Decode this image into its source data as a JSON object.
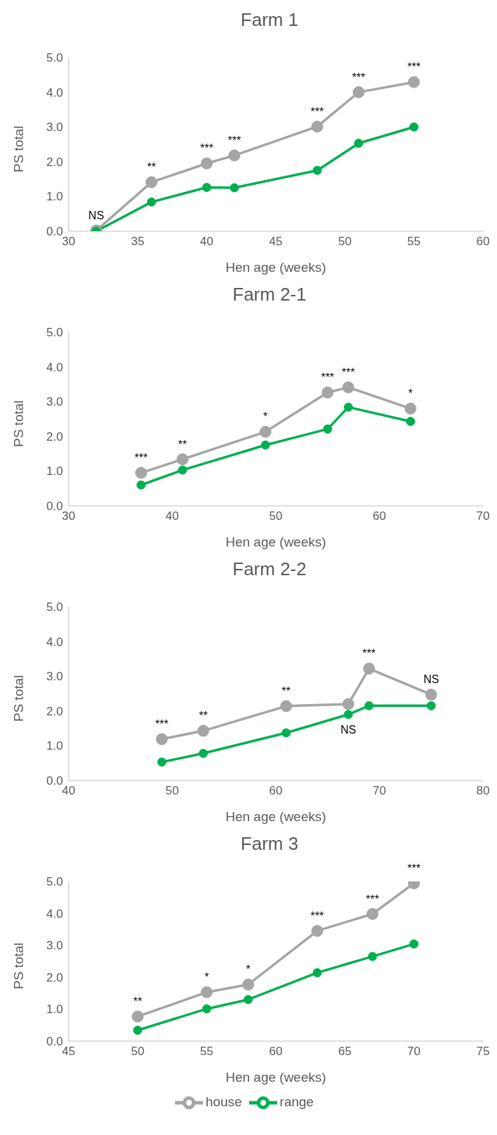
{
  "chart_data": [
    {
      "type": "line",
      "title": "Farm 1",
      "xlabel": "Hen age (weeks)",
      "ylabel": "PS total",
      "marker": "circle",
      "grid": false,
      "x": [
        32,
        36,
        40,
        42,
        48,
        51,
        55
      ],
      "series": [
        {
          "color": "#a5a5a5",
          "values": [
            0.02,
            1.41,
            1.95,
            2.18,
            3.01,
            4.0,
            4.29
          ]
        },
        {
          "color": "#00b050",
          "values": [
            0,
            0.84,
            1.26,
            1.25,
            1.75,
            2.53,
            3.0
          ]
        }
      ],
      "xlim": [
        30,
        60
      ],
      "xticks": [
        30,
        35,
        40,
        45,
        50,
        55,
        60
      ],
      "ylim": [
        0,
        5
      ],
      "yticks": [
        {
          "value": 0,
          "label": "0.0"
        },
        {
          "value": 1,
          "label": "1.0"
        },
        {
          "value": 2,
          "label": "2.0"
        },
        {
          "value": 3,
          "label": "3.0"
        },
        {
          "value": 4,
          "label": "4.0"
        },
        {
          "value": 5,
          "label": "5.0"
        }
      ],
      "annotations": [
        {
          "text": "NS",
          "x": 32,
          "y": 0.02
        },
        {
          "text": "**",
          "x": 36,
          "y": 1.41
        },
        {
          "text": "***",
          "x": 40,
          "y": 1.95
        },
        {
          "text": "***",
          "x": 42,
          "y": 2.18
        },
        {
          "text": "***",
          "x": 48,
          "y": 3.01
        },
        {
          "text": "***",
          "x": 51,
          "y": 4.0
        },
        {
          "text": "***",
          "x": 55,
          "y": 4.29
        }
      ]
    },
    {
      "type": "line",
      "title": "Farm 2-1",
      "xlabel": "Hen age (weeks)",
      "ylabel": "PS total",
      "marker": "circle",
      "grid": false,
      "x": [
        37,
        41,
        49,
        55,
        57,
        63
      ],
      "series": [
        {
          "color": "#a5a5a5",
          "values": [
            0.95,
            1.34,
            2.13,
            3.26,
            3.41,
            2.8
          ]
        },
        {
          "color": "#00b050",
          "values": [
            0.6,
            1.03,
            1.75,
            2.21,
            2.84,
            2.43
          ]
        }
      ],
      "xlim": [
        30,
        70
      ],
      "xticks": [
        30,
        40,
        50,
        60,
        70
      ],
      "ylim": [
        0,
        5
      ],
      "yticks": [
        {
          "value": 0,
          "label": "0.0"
        },
        {
          "value": 1,
          "label": "1.0"
        },
        {
          "value": 2,
          "label": "2.0"
        },
        {
          "value": 3,
          "label": "3.0"
        },
        {
          "value": 4,
          "label": "4.0"
        },
        {
          "value": 5,
          "label": "5.0"
        }
      ],
      "annotations": [
        {
          "text": "***",
          "x": 37,
          "y": 0.95
        },
        {
          "text": "**",
          "x": 41,
          "y": 1.34
        },
        {
          "text": "*",
          "x": 49,
          "y": 2.13
        },
        {
          "text": "***",
          "x": 55,
          "y": 3.26
        },
        {
          "text": "***",
          "x": 57,
          "y": 3.41
        },
        {
          "text": "*",
          "x": 63,
          "y": 2.8
        }
      ]
    },
    {
      "type": "line",
      "title": "Farm 2-2",
      "xlabel": "Hen age (weeks)",
      "ylabel": "PS total",
      "marker": "circle",
      "grid": false,
      "x": [
        49,
        53,
        61,
        67,
        69,
        75
      ],
      "series": [
        {
          "color": "#a5a5a5",
          "values": [
            1.19,
            1.43,
            2.14,
            2.2,
            3.22,
            2.47
          ]
        },
        {
          "color": "#00b050",
          "values": [
            0.53,
            0.78,
            1.37,
            1.9,
            2.15,
            2.15
          ]
        }
      ],
      "xlim": [
        40,
        80
      ],
      "xticks": [
        40,
        50,
        60,
        70,
        80
      ],
      "ylim": [
        0,
        5
      ],
      "yticks": [
        {
          "value": 0,
          "label": "0.0"
        },
        {
          "value": 1,
          "label": "1.0"
        },
        {
          "value": 2,
          "label": "2.0"
        },
        {
          "value": 3,
          "label": "3.0"
        },
        {
          "value": 4,
          "label": "4.0"
        },
        {
          "value": 5,
          "label": "5.0"
        }
      ],
      "annotations": [
        {
          "text": "***",
          "x": 49,
          "y": 1.19
        },
        {
          "text": "**",
          "x": 53,
          "y": 1.43
        },
        {
          "text": "**",
          "x": 61,
          "y": 2.14
        },
        {
          "text": "***",
          "x": 69,
          "y": 3.22
        },
        {
          "text": "NS",
          "x": 75,
          "y": 2.47
        },
        {
          "text": "NS",
          "x": 67,
          "y": 1.9
        }
      ]
    },
    {
      "type": "line",
      "title": "Farm 3",
      "xlabel": "Hen age (weeks)",
      "ylabel": "PS total",
      "marker": "circle",
      "grid": false,
      "legend": "bottom",
      "x": [
        50,
        55,
        58,
        63,
        67,
        70
      ],
      "series": [
        {
          "name": "house",
          "color": "#a5a5a5",
          "values": [
            0.77,
            1.53,
            1.77,
            3.45,
            3.98,
            4.94
          ]
        },
        {
          "name": "range",
          "color": "#00b050",
          "values": [
            0.34,
            1.01,
            1.3,
            2.14,
            2.65,
            3.04
          ]
        }
      ],
      "xlim": [
        45,
        75
      ],
      "xticks": [
        45,
        50,
        55,
        60,
        65,
        70,
        75
      ],
      "ylim": [
        0,
        5
      ],
      "yticks": [
        {
          "value": 0,
          "label": "0.0"
        },
        {
          "value": 1,
          "label": "1.0"
        },
        {
          "value": 2,
          "label": "2.0"
        },
        {
          "value": 3,
          "label": "3.0"
        },
        {
          "value": 4,
          "label": "4.0"
        },
        {
          "value": 5,
          "label": "5.0"
        }
      ],
      "annotations": [
        {
          "text": "**",
          "x": 50,
          "y": 0.77
        },
        {
          "text": "*",
          "x": 55,
          "y": 1.53
        },
        {
          "text": "*",
          "x": 58,
          "y": 1.77
        },
        {
          "text": "***",
          "x": 63,
          "y": 3.45
        },
        {
          "text": "***",
          "x": 67,
          "y": 3.98
        },
        {
          "text": "***",
          "x": 70,
          "y": 4.94
        }
      ]
    }
  ]
}
